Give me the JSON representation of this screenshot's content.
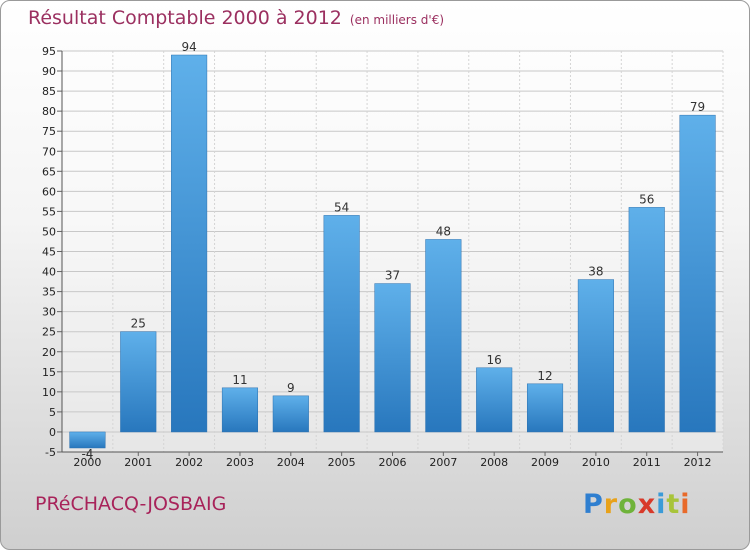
{
  "header": {
    "title": "Résultat Comptable 2000 à 2012",
    "unit": "(en milliers d'€)"
  },
  "footer": {
    "commune": "PRéCHACQ-JOSBAIG",
    "logo_letters": [
      "P",
      "r",
      "o",
      "x",
      "i",
      "t",
      "i"
    ],
    "logo_colors": [
      "#2f7fd0",
      "#e8a21a",
      "#6fb33a",
      "#d83a2a",
      "#3a9bd8",
      "#a8c43a",
      "#e86a2a"
    ]
  },
  "chart_data": {
    "type": "bar",
    "title": "Résultat Comptable 2000 à 2012",
    "subtitle": "(en milliers d'€)",
    "xlabel": "",
    "ylabel": "",
    "categories": [
      "2000",
      "2001",
      "2002",
      "2003",
      "2004",
      "2005",
      "2006",
      "2007",
      "2008",
      "2009",
      "2010",
      "2011",
      "2012"
    ],
    "values": [
      -4,
      25,
      94,
      11,
      9,
      54,
      37,
      48,
      16,
      12,
      38,
      56,
      79
    ],
    "value_labels": [
      "-4",
      "25",
      "94",
      "11",
      "9",
      "54",
      "37",
      "48",
      "16",
      "12",
      "38",
      "56",
      "79"
    ],
    "ylim": [
      -5,
      95
    ],
    "yticks": [
      -5,
      0,
      5,
      10,
      15,
      20,
      25,
      30,
      35,
      40,
      45,
      50,
      55,
      60,
      65,
      70,
      75,
      80,
      85,
      90,
      95
    ],
    "grid": true,
    "legend": "none",
    "bar_color": "#3a8ed6",
    "text_color": "#9b3060"
  }
}
